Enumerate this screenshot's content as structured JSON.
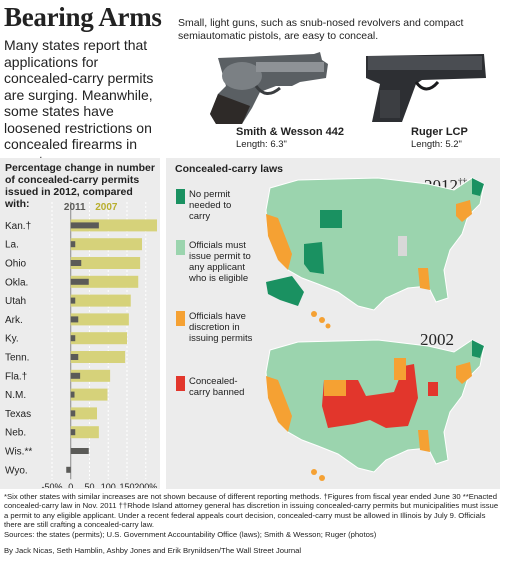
{
  "header": {
    "title": "Bearing Arms",
    "dek": "Many states report that applications for concealed-carry permits are surging. Meanwhile, some states have loosened restrictions on concealed firearms in recent years.",
    "gun_caption": "Small, light guns, such as snub-nosed revolvers and compact semiautomatic pistols, are easy to conceal."
  },
  "guns": [
    {
      "name": "Smith & Wesson 442",
      "length": "Length: 6.3\""
    },
    {
      "name": "Ruger LCP",
      "length": "Length: 5.2\""
    }
  ],
  "colors": {
    "bar2011": "#5b5b58",
    "bar2007": "#d6d27a",
    "year2007_text": "#b8ae2e",
    "no_permit": "#1a9161",
    "must_issue": "#9bd4ae",
    "discretion": "#f5a133",
    "banned": "#e2362c",
    "panel": "#ececec"
  },
  "chart_data": {
    "type": "bar",
    "title": "Percentage change in number of concealed-carry permits issued in 2012, compared with:",
    "categories": [
      "Kan.†",
      "La.",
      "Ohio",
      "Okla.",
      "Utah",
      "Ark.",
      "Ky.",
      "Tenn.",
      "Fla.†",
      "N.M.",
      "Texas",
      "Neb.",
      "Wis.**",
      "Wyo."
    ],
    "series": [
      {
        "name": "2011",
        "values": [
          75,
          12,
          28,
          48,
          12,
          20,
          12,
          20,
          25,
          10,
          12,
          12,
          48,
          -12
        ]
      },
      {
        "name": "2007",
        "values": [
          230,
          190,
          185,
          180,
          160,
          155,
          150,
          145,
          105,
          98,
          70,
          75,
          null,
          null
        ]
      }
    ],
    "xlim": [
      -50,
      230
    ],
    "xticks": [
      -50,
      0,
      50,
      100,
      150,
      200
    ],
    "xtick_labels": [
      "-50%",
      "0",
      "50",
      "100",
      "150",
      "200%"
    ],
    "grid": true
  },
  "laws": {
    "title": "Concealed-carry laws",
    "legend": [
      {
        "label": "No permit needed to carry",
        "color": "#1a9161"
      },
      {
        "label": "Officials must issue permit to any applicant who is eligible",
        "color": "#9bd4ae"
      },
      {
        "label": "Officials have discretion in issuing permits",
        "color": "#f5a133"
      },
      {
        "label": "Concealed-carry banned",
        "color": "#e2362c"
      }
    ],
    "map_2012": {
      "year": "2012",
      "mark": "††"
    },
    "map_2002": {
      "year": "2002"
    }
  },
  "footnotes": {
    "notes": "*Six other states with similar increases are not shown because of different reporting methods. †Figures from fiscal year ended June 30 **Enacted concealed-carry law in Nov. 2011 ††Rhode Island attorney general has discretion in issuing concealed-carry permits but municipalities must issue a permit to any eligible applicant. Under a recent federal appeals court decision, concealed-carry must be allowed in Illinois by July 9. Officials there are still crafting a concealed-carry law.",
    "sources": "Sources: the states (permits); U.S. Government Accountability Office (laws); Smith & Wesson; Ruger (photos)",
    "credit": "By Jack Nicas, Seth Hamblin, Ashby Jones and Erik Brynildsen/The Wall Street Journal"
  }
}
